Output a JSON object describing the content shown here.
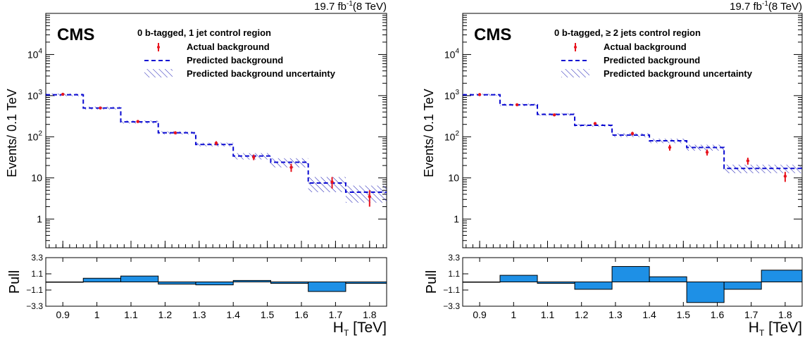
{
  "colors": {
    "predicted": "#0a0ad2",
    "actual": "#e8141e",
    "pull_fill": "#1e90e6",
    "hatch": "#1a1ab4"
  },
  "chart_data": [
    {
      "type": "line",
      "panel": "left",
      "lumi": "19.7 fb",
      "lumi_sup": "-1",
      "energy": "(8 TeV)",
      "experiment": "CMS",
      "region": "0 b-tagged, 1 jet control region",
      "legend": [
        "Actual background",
        "Predicted background",
        "Predicted background uncertainty"
      ],
      "ylabel": "Events/ 0.1 TeV",
      "pull_label": "Pull",
      "xlabel": "H",
      "xlabel_sub": "T",
      "xlabel_unit": " [TeV]",
      "log_y": true,
      "ylim": [
        0.2,
        100000
      ],
      "xlim": [
        0.85,
        1.85
      ],
      "pull_ylim": [
        -3.3,
        3.3
      ],
      "y_tick_labels": [
        "1",
        "10",
        "10",
        "10",
        "10"
      ],
      "y_tick_sups": [
        "",
        "",
        "2",
        "3",
        "4"
      ],
      "pull_tick_labels": [
        "3.3",
        "1.1",
        "−1.1",
        "−3.3"
      ],
      "x_tick_labels": [
        "0.9",
        "1",
        "1.1",
        "1.2",
        "1.3",
        "1.4",
        "1.5",
        "1.6",
        "1.7",
        "1.8"
      ],
      "bin_edges": [
        0.85,
        0.96,
        1.07,
        1.18,
        1.29,
        1.4,
        1.51,
        1.62,
        1.73,
        1.85
      ],
      "predicted": [
        1050,
        500,
        230,
        125,
        65,
        34,
        24,
        7.5,
        4.5
      ],
      "predicted_unc": [
        80,
        40,
        20,
        11,
        7,
        6,
        6,
        3,
        2
      ],
      "actual_x": [
        0.9,
        1.01,
        1.12,
        1.23,
        1.35,
        1.46,
        1.57,
        1.69,
        1.8
      ],
      "actual": [
        1080,
        500,
        235,
        125,
        70,
        32,
        18,
        8,
        3.5
      ],
      "actual_err": [
        40,
        25,
        18,
        10,
        8,
        5,
        4,
        2.5,
        1.5
      ],
      "pull": [
        0,
        0.5,
        0.8,
        -0.3,
        -0.4,
        0.2,
        -0.2,
        -1.3,
        -0.2
      ]
    },
    {
      "type": "line",
      "panel": "right",
      "lumi": "19.7 fb",
      "lumi_sup": "-1",
      "energy": "(8 TeV)",
      "experiment": "CMS",
      "region": "0 b-tagged,  ≥ 2 jets control region",
      "legend": [
        "Actual background",
        "Predicted background",
        "Predicted background uncertainty"
      ],
      "ylabel": "Events/ 0.1 TeV",
      "pull_label": "Pull",
      "xlabel": "H",
      "xlabel_sub": "T",
      "xlabel_unit": " [TeV]",
      "log_y": true,
      "ylim": [
        0.2,
        100000
      ],
      "xlim": [
        0.85,
        1.85
      ],
      "pull_ylim": [
        -3.3,
        3.3
      ],
      "y_tick_labels": [
        "1",
        "10",
        "10",
        "10",
        "10"
      ],
      "y_tick_sups": [
        "",
        "",
        "2",
        "3",
        "4"
      ],
      "pull_tick_labels": [
        "3.3",
        "1.1",
        "−1.1",
        "−3.3"
      ],
      "x_tick_labels": [
        "0.9",
        "1",
        "1.1",
        "1.2",
        "1.3",
        "1.4",
        "1.5",
        "1.6",
        "1.7",
        "1.8"
      ],
      "bin_edges": [
        0.85,
        0.96,
        1.07,
        1.18,
        1.29,
        1.4,
        1.51,
        1.62,
        1.73,
        1.85
      ],
      "predicted": [
        1050,
        600,
        350,
        190,
        110,
        80,
        55,
        17,
        17
      ],
      "predicted_unc": [
        60,
        40,
        25,
        15,
        12,
        10,
        9,
        4,
        4
      ],
      "actual_x": [
        0.9,
        1.01,
        1.12,
        1.24,
        1.35,
        1.46,
        1.57,
        1.69,
        1.8
      ],
      "actual": [
        1060,
        600,
        340,
        210,
        120,
        55,
        42,
        26,
        11
      ],
      "actual_err": [
        40,
        25,
        20,
        15,
        12,
        9,
        7,
        5,
        3
      ],
      "pull": [
        0,
        0.9,
        -0.2,
        -1.0,
        2.1,
        0.7,
        -2.8,
        -1.0,
        1.6
      ]
    }
  ]
}
